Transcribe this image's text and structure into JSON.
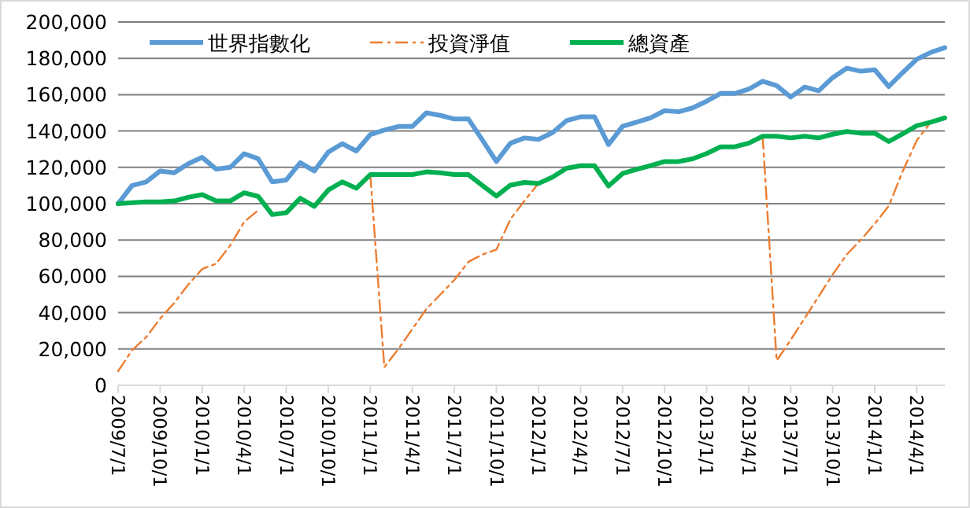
{
  "chart_data": {
    "type": "line",
    "categories": [
      "2009/7/1",
      null,
      null,
      "2009/10/1",
      null,
      null,
      "2010/1/1",
      null,
      null,
      "2010/4/1",
      null,
      null,
      "2010/7/1",
      null,
      null,
      "2010/10/1",
      null,
      null,
      "2011/1/1",
      null,
      null,
      "2011/4/1",
      null,
      null,
      "2011/7/1",
      null,
      null,
      "2011/10/1",
      null,
      null,
      "2012/1/1",
      null,
      null,
      "2012/4/1",
      null,
      null,
      "2012/7/1",
      null,
      null,
      "2012/10/1",
      null,
      null,
      "2013/1/1",
      null,
      null,
      "2013/4/1",
      null,
      null,
      "2013/7/1",
      null,
      null,
      "2013/10/1",
      null,
      null,
      "2014/1/1",
      null,
      null,
      "2014/4/1",
      null,
      null
    ],
    "series": [
      {
        "name": "世界指數化",
        "color": "#5b9bd5",
        "line_style": "solid",
        "values": [
          100000,
          110000,
          112000,
          118000,
          117000,
          122000,
          125500,
          119000,
          120000,
          127500,
          124700,
          112000,
          113000,
          122600,
          118000,
          128400,
          133000,
          129000,
          138000,
          140500,
          142500,
          142500,
          150000,
          148600,
          146600,
          146600,
          135000,
          123200,
          133300,
          136200,
          135400,
          139100,
          145700,
          147800,
          147800,
          132500,
          142600,
          144900,
          147200,
          151200,
          150600,
          152700,
          156400,
          160700,
          160700,
          163000,
          167400,
          165000,
          158700,
          164200,
          162200,
          169400,
          174600,
          172900,
          173700,
          164500,
          172200,
          179500,
          183300,
          185900
        ]
      },
      {
        "name": "投資淨值",
        "color": "#ed7d31",
        "line_style": "dashed",
        "values": [
          7800,
          19300,
          26500,
          36700,
          45300,
          55400,
          64000,
          67000,
          77000,
          90000,
          96400,
          null,
          null,
          null,
          null,
          null,
          null,
          null,
          116000,
          10000,
          20000,
          31000,
          42000,
          50000,
          58000,
          68000,
          72000,
          74700,
          91500,
          101600,
          111100,
          null,
          null,
          null,
          null,
          null,
          null,
          null,
          null,
          null,
          null,
          null,
          null,
          null,
          null,
          null,
          137100,
          13600,
          25000,
          37000,
          49000,
          61000,
          72000,
          80000,
          89000,
          98700,
          118000,
          134800,
          144900,
          null
        ]
      },
      {
        "name": "總資產",
        "color": "#00b050",
        "line_style": "solid",
        "values": [
          100000,
          100500,
          101000,
          101000,
          101500,
          103500,
          105000,
          101500,
          101500,
          106000,
          104000,
          94000,
          95000,
          103000,
          98500,
          107500,
          112000,
          108500,
          116000,
          116000,
          116000,
          116000,
          117500,
          117000,
          116000,
          116000,
          110000,
          104200,
          110200,
          111700,
          111100,
          114600,
          119500,
          120900,
          120900,
          109700,
          116600,
          118900,
          120900,
          123200,
          123200,
          124700,
          127600,
          131300,
          131300,
          133300,
          137100,
          137100,
          136200,
          137100,
          136200,
          138200,
          139700,
          138800,
          138800,
          134200,
          138500,
          142900,
          144900,
          147200
        ]
      }
    ],
    "ylim": [
      0,
      200000
    ],
    "yticks": [
      {
        "value": 0,
        "label": "0"
      },
      {
        "value": 20000,
        "label": "20,000"
      },
      {
        "value": 40000,
        "label": "40,000"
      },
      {
        "value": 60000,
        "label": "60,000"
      },
      {
        "value": 80000,
        "label": "80,000"
      },
      {
        "value": 100000,
        "label": "100,000"
      },
      {
        "value": 120000,
        "label": "120,000"
      },
      {
        "value": 140000,
        "label": "140,000"
      },
      {
        "value": 160000,
        "label": "160,000"
      },
      {
        "value": 180000,
        "label": "180,000"
      },
      {
        "value": 200000,
        "label": "200,000"
      }
    ],
    "grid": "y",
    "legend": "top"
  }
}
